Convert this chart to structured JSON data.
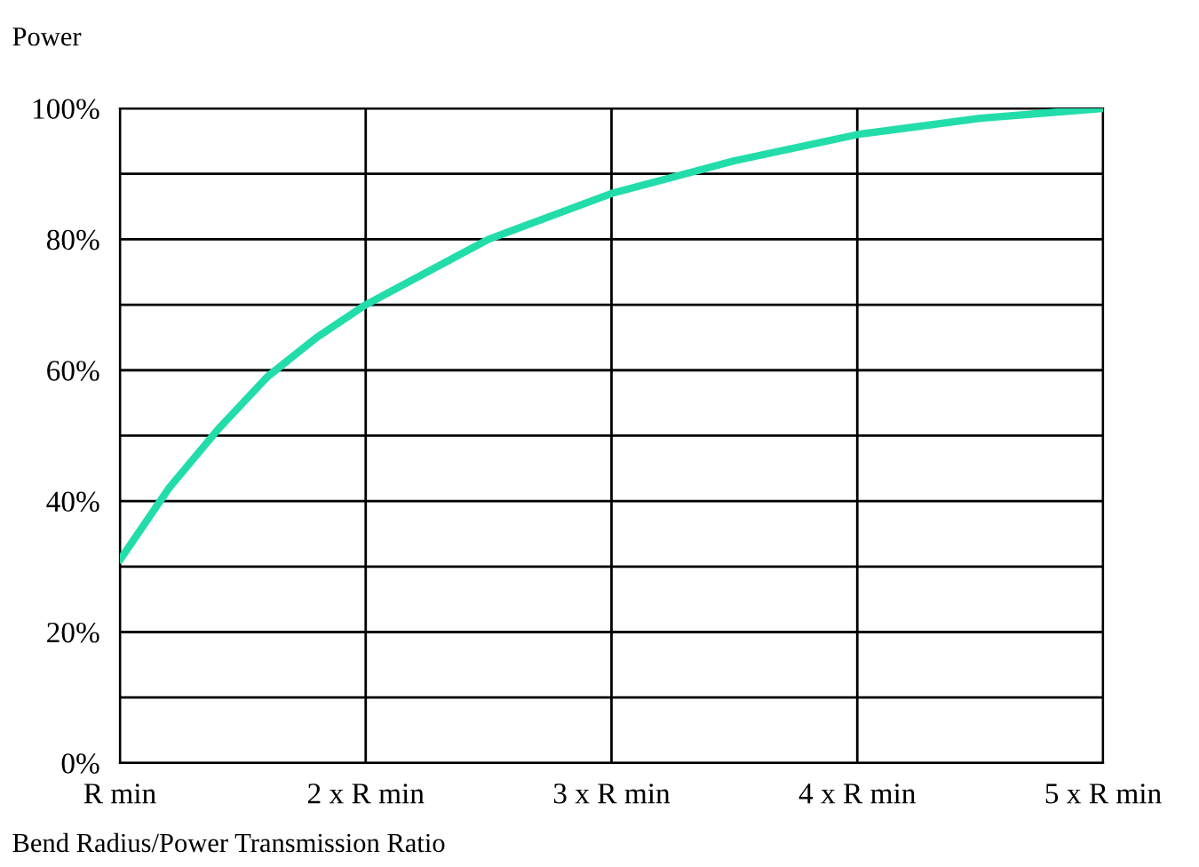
{
  "chart_data": {
    "type": "line",
    "ylabel": "Power",
    "xlabel": "Bend Radius/Power Transmission Ratio",
    "x": [
      1.0,
      1.2,
      1.4,
      1.6,
      1.8,
      2.0,
      2.5,
      3.0,
      3.5,
      4.0,
      4.5,
      5.0
    ],
    "series": [
      {
        "color": "#22ddaa",
        "values": [
          31,
          42,
          51,
          59,
          65,
          70,
          80,
          87,
          92,
          96,
          98.5,
          100
        ]
      }
    ],
    "xlim": [
      1,
      5
    ],
    "xticks": [
      {
        "value": 1,
        "label": "R min"
      },
      {
        "value": 2,
        "label": "2 x R min"
      },
      {
        "value": 3,
        "label": "3 x R min"
      },
      {
        "value": 4,
        "label": "4 x R min"
      },
      {
        "value": 5,
        "label": "5 x R min"
      }
    ],
    "ylim": [
      0,
      100
    ],
    "yticks": [
      {
        "value": 0,
        "label": "0%"
      },
      {
        "value": 10,
        "label": null
      },
      {
        "value": 20,
        "label": "20%"
      },
      {
        "value": 30,
        "label": null
      },
      {
        "value": 40,
        "label": "40%"
      },
      {
        "value": 50,
        "label": null
      },
      {
        "value": 60,
        "label": "60%"
      },
      {
        "value": 70,
        "label": null
      },
      {
        "value": 80,
        "label": "80%"
      },
      {
        "value": 90,
        "label": null
      },
      {
        "value": 100,
        "label": "100%"
      }
    ],
    "grid": true,
    "marker": "none",
    "line_style": "solid"
  }
}
